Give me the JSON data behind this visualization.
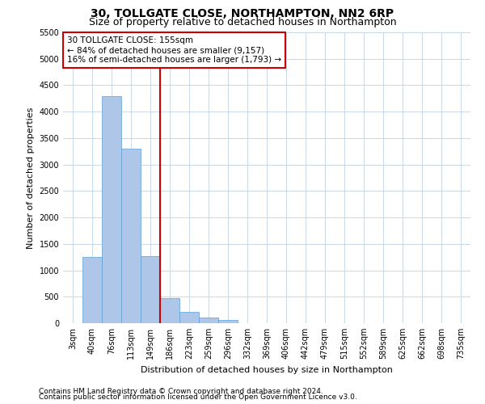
{
  "title_line1": "30, TOLLGATE CLOSE, NORTHAMPTON, NN2 6RP",
  "title_line2": "Size of property relative to detached houses in Northampton",
  "xlabel": "Distribution of detached houses by size in Northampton",
  "ylabel": "Number of detached properties",
  "footer_line1": "Contains HM Land Registry data © Crown copyright and database right 2024.",
  "footer_line2": "Contains public sector information licensed under the Open Government Licence v3.0.",
  "annotation_line1": "30 TOLLGATE CLOSE: 155sqm",
  "annotation_line2": "← 84% of detached houses are smaller (9,157)",
  "annotation_line3": "16% of semi-detached houses are larger (1,793) →",
  "bar_color": "#aec6e8",
  "bar_edge_color": "#5a9fd4",
  "vline_color": "#cc0000",
  "annotation_box_edge_color": "#cc0000",
  "background_color": "#ffffff",
  "grid_color": "#c8d8e8",
  "categories": [
    "3sqm",
    "40sqm",
    "76sqm",
    "113sqm",
    "149sqm",
    "186sqm",
    "223sqm",
    "259sqm",
    "296sqm",
    "332sqm",
    "369sqm",
    "406sqm",
    "442sqm",
    "479sqm",
    "515sqm",
    "552sqm",
    "589sqm",
    "625sqm",
    "662sqm",
    "698sqm",
    "735sqm"
  ],
  "values": [
    0,
    1250,
    4300,
    3300,
    1270,
    480,
    210,
    100,
    60,
    0,
    0,
    0,
    0,
    0,
    0,
    0,
    0,
    0,
    0,
    0,
    0
  ],
  "vline_x": 4.5,
  "ylim": [
    0,
    5500
  ],
  "yticks": [
    0,
    500,
    1000,
    1500,
    2000,
    2500,
    3000,
    3500,
    4000,
    4500,
    5000,
    5500
  ],
  "title_fontsize": 10,
  "subtitle_fontsize": 9,
  "label_fontsize": 8,
  "tick_fontsize": 7,
  "footer_fontsize": 6.5,
  "annotation_fontsize": 7.5
}
